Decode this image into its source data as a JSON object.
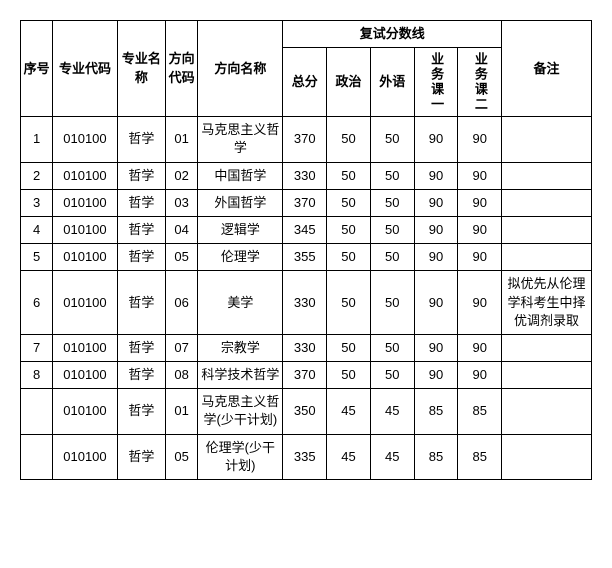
{
  "headers": {
    "seq": "序号",
    "major_code": "专业代码",
    "major_name": "专业名称",
    "dir_code": "方向代码",
    "dir_name": "方向名称",
    "score_group": "复试分数线",
    "total": "总分",
    "politics": "政治",
    "foreign": "外语",
    "course1": "业务课一",
    "course2": "业务课二",
    "remark": "备注"
  },
  "rows": [
    {
      "seq": "1",
      "code": "010100",
      "major": "哲学",
      "dcode": "01",
      "dname": "马克思主义哲学",
      "total": "370",
      "pol": "50",
      "for": "50",
      "c1": "90",
      "c2": "90",
      "remark": ""
    },
    {
      "seq": "2",
      "code": "010100",
      "major": "哲学",
      "dcode": "02",
      "dname": "中国哲学",
      "total": "330",
      "pol": "50",
      "for": "50",
      "c1": "90",
      "c2": "90",
      "remark": ""
    },
    {
      "seq": "3",
      "code": "010100",
      "major": "哲学",
      "dcode": "03",
      "dname": "外国哲学",
      "total": "370",
      "pol": "50",
      "for": "50",
      "c1": "90",
      "c2": "90",
      "remark": ""
    },
    {
      "seq": "4",
      "code": "010100",
      "major": "哲学",
      "dcode": "04",
      "dname": "逻辑学",
      "total": "345",
      "pol": "50",
      "for": "50",
      "c1": "90",
      "c2": "90",
      "remark": ""
    },
    {
      "seq": "5",
      "code": "010100",
      "major": "哲学",
      "dcode": "05",
      "dname": "伦理学",
      "total": "355",
      "pol": "50",
      "for": "50",
      "c1": "90",
      "c2": "90",
      "remark": ""
    },
    {
      "seq": "6",
      "code": "010100",
      "major": "哲学",
      "dcode": "06",
      "dname": "美学",
      "total": "330",
      "pol": "50",
      "for": "50",
      "c1": "90",
      "c2": "90",
      "remark": "拟优先从伦理学科考生中择优调剂录取"
    },
    {
      "seq": "7",
      "code": "010100",
      "major": "哲学",
      "dcode": "07",
      "dname": "宗教学",
      "total": "330",
      "pol": "50",
      "for": "50",
      "c1": "90",
      "c2": "90",
      "remark": ""
    },
    {
      "seq": "8",
      "code": "010100",
      "major": "哲学",
      "dcode": "08",
      "dname": "科学技术哲学",
      "total": "370",
      "pol": "50",
      "for": "50",
      "c1": "90",
      "c2": "90",
      "remark": ""
    },
    {
      "seq": "",
      "code": "010100",
      "major": "哲学",
      "dcode": "01",
      "dname": "马克思主义哲学(少干计划)",
      "total": "350",
      "pol": "45",
      "for": "45",
      "c1": "85",
      "c2": "85",
      "remark": ""
    },
    {
      "seq": "",
      "code": "010100",
      "major": "哲学",
      "dcode": "05",
      "dname": "伦理学(少干计划)",
      "total": "335",
      "pol": "45",
      "for": "45",
      "c1": "85",
      "c2": "85",
      "remark": ""
    }
  ],
  "style": {
    "border_color": "#000000",
    "background_color": "#ffffff",
    "font_size": 13,
    "font_family": "SimSun"
  }
}
